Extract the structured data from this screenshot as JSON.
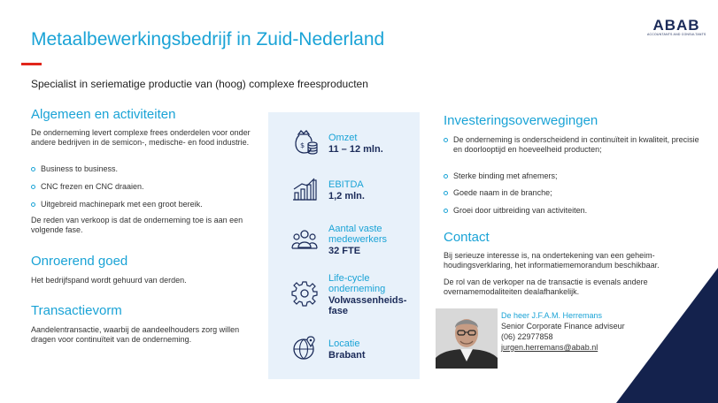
{
  "header": {
    "title": "Metaalbewerkingsbedrijf in Zuid-Nederland",
    "subtitle": "Specialist in seriematige productie van (hoog) complexe freesproducten",
    "logo_text": "ABAB",
    "logo_sub": "ACCOUNTANTS AND CONSULTANTS"
  },
  "left": {
    "general": {
      "heading": "Algemeen en activiteiten",
      "intro": "De onderneming levert complexe frees onderdelen voor onder andere bedrijven in de semicon-, medische- en food industrie.",
      "bullets": [
        "Business to business.",
        "CNC frezen en CNC draaien.",
        "Uitgebreid machinepark met een groot bereik."
      ],
      "outro": "De reden van verkoop is dat de onderneming toe is aan een volgende fase."
    },
    "real_estate": {
      "heading": "Onroerend goed",
      "text": "Het bedrijfspand wordt gehuurd van derden."
    },
    "transaction": {
      "heading": "Transactievorm",
      "text": "Aandelentransactie, waarbij de aandeelhouders zorg willen dragen voor continuïteit van de onderneming."
    }
  },
  "kpis": [
    {
      "icon": "money-bag-icon",
      "label": "Omzet",
      "value": "11 – 12 mln."
    },
    {
      "icon": "bar-chart-icon",
      "label": "EBITDA",
      "value": "1,2 mln."
    },
    {
      "icon": "people-icon",
      "label": "Aantal vaste medewerkers",
      "value": "32 FTE"
    },
    {
      "icon": "gear-icon",
      "label": "Life-cycle onderneming",
      "value": "Volwassenheids-fase"
    },
    {
      "icon": "location-globe-icon",
      "label": "Locatie",
      "value": "Brabant"
    }
  ],
  "right": {
    "investment": {
      "heading": "Investeringsoverwegingen",
      "bullets": [
        "De onderneming is onderscheidend in continuïteit in kwaliteit, precisie en doorlooptijd en hoeveelheid producten;",
        "Sterke binding met afnemers;",
        "Goede naam in de branche;",
        "Groei door uitbreiding van activiteiten."
      ]
    },
    "contact": {
      "heading": "Contact",
      "text1": "Bij serieuze interesse is, na ondertekening van een geheim-houdingsverklaring, het informatiememorandum beschikbaar.",
      "text2": "De rol van de verkoper na de transactie is evenals andere overnamemodaliteiten dealafhankelijk.",
      "name": "De heer J.F.A.M. Herremans",
      "role": "Senior Corporate Finance adviseur",
      "phone": "(06) 22977858",
      "email": "jurgen.herremans@abab.nl"
    }
  },
  "colors": {
    "accent": "#1aa3d6",
    "navy": "#1b2b59",
    "red": "#e1251b",
    "panel": "#e8f1fa"
  }
}
